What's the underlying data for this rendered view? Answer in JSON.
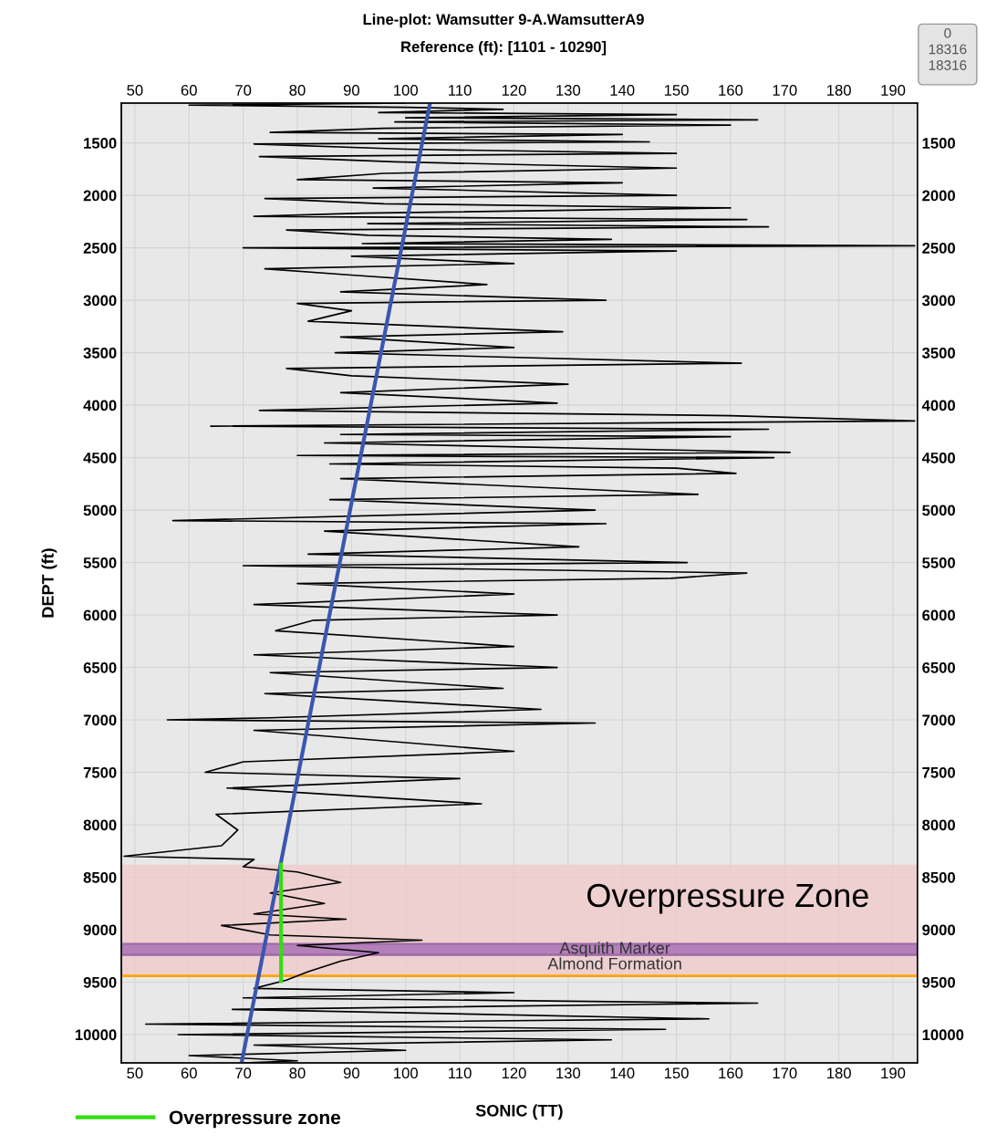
{
  "chart_data": {
    "type": "line",
    "title": "Line-plot: Wamsutter 9-A.WamsutterA9",
    "subtitle": "Reference (ft): [1101 - 10290]",
    "xlabel": "SONIC (TT)",
    "ylabel": "DEPT (ft)",
    "xlim": [
      47.5,
      194.5
    ],
    "xticks": [
      50,
      60,
      70,
      80,
      90,
      100,
      110,
      120,
      130,
      140,
      150,
      160,
      170,
      180,
      190
    ],
    "x2lim": [
      47.5,
      194.5
    ],
    "x2ticks": [
      50,
      60,
      70,
      80,
      90,
      100,
      110,
      120,
      130,
      140,
      150,
      160,
      170,
      180,
      190
    ],
    "ylim": [
      10270,
      1120
    ],
    "yticks": [
      1500,
      2000,
      2500,
      3000,
      3500,
      4000,
      4500,
      5000,
      5500,
      6000,
      6500,
      7000,
      7500,
      8000,
      8500,
      9000,
      9500,
      10000
    ],
    "y2lim": [
      10270,
      1120
    ],
    "y2ticks": [
      1500,
      2000,
      2500,
      3000,
      3500,
      4000,
      4500,
      5000,
      5500,
      6000,
      6500,
      7000,
      7500,
      8000,
      8500,
      9000,
      9500,
      10000
    ],
    "grid": true,
    "legend": "bottom left",
    "line_style": "solid",
    "marker": "none",
    "series": [
      {
        "color": "#000000",
        "x": [
          100,
          60,
          100,
          118,
          95,
          150,
          100,
          165,
          98,
          160,
          96,
          75,
          140,
          95,
          145,
          72,
          100,
          150,
          73,
          98,
          150,
          96,
          80,
          140,
          94,
          150,
          74,
          96,
          160,
          92,
          72,
          163,
          93,
          167,
          78,
          93,
          138,
          92,
          194,
          70,
          150,
          90,
          120,
          74,
          90,
          115,
          88,
          137,
          80,
          90,
          82,
          129,
          88,
          120,
          87,
          162,
          78,
          90,
          130,
          88,
          128,
          73,
          160,
          194,
          64,
          167,
          88,
          160,
          85,
          171,
          80,
          168,
          86,
          150,
          161,
          88,
          154,
          86,
          135,
          57,
          137,
          85,
          132,
          82,
          152,
          70,
          163,
          149,
          80,
          120,
          72,
          128,
          83,
          76,
          120,
          72,
          128,
          75,
          118,
          74,
          125,
          75,
          56,
          135,
          72,
          120,
          70,
          63,
          110,
          67,
          114,
          65,
          69,
          66,
          48,
          72,
          70,
          80,
          88,
          75,
          85,
          72,
          89,
          66,
          75,
          103,
          80,
          95,
          88,
          82,
          78,
          72,
          120,
          70,
          165,
          68,
          156,
          52,
          148,
          58,
          138,
          72,
          100,
          60,
          80,
          70
        ],
        "values": [
          1120,
          1140,
          1160,
          1180,
          1210,
          1230,
          1260,
          1280,
          1300,
          1330,
          1360,
          1400,
          1420,
          1460,
          1490,
          1510,
          1560,
          1600,
          1630,
          1680,
          1740,
          1790,
          1850,
          1880,
          1930,
          2000,
          2030,
          2080,
          2120,
          2170,
          2200,
          2230,
          2270,
          2300,
          2330,
          2380,
          2420,
          2460,
          2480,
          2500,
          2530,
          2580,
          2650,
          2700,
          2760,
          2850,
          2920,
          3000,
          3030,
          3100,
          3200,
          3300,
          3350,
          3450,
          3500,
          3600,
          3650,
          3720,
          3800,
          3880,
          3980,
          4050,
          4100,
          4150,
          4200,
          4230,
          4280,
          4300,
          4360,
          4450,
          4480,
          4500,
          4560,
          4600,
          4650,
          4700,
          4850,
          4900,
          5000,
          5100,
          5130,
          5200,
          5350,
          5420,
          5500,
          5530,
          5600,
          5650,
          5700,
          5800,
          5900,
          6000,
          6050,
          6150,
          6300,
          6380,
          6500,
          6550,
          6700,
          6750,
          6900,
          6980,
          7000,
          7030,
          7100,
          7300,
          7400,
          7500,
          7560,
          7650,
          7800,
          7900,
          8050,
          8200,
          8300,
          8330,
          8400,
          8450,
          8550,
          8650,
          8750,
          8850,
          8900,
          8960,
          9050,
          9100,
          9150,
          9220,
          9300,
          9400,
          9480,
          9560,
          9600,
          9650,
          9700,
          9760,
          9850,
          9900,
          9950,
          10000,
          10050,
          10100,
          10150,
          10200,
          10250,
          10270
        ]
      },
      {
        "color": "#3a56b0",
        "x": [
          104.5,
          69.7
        ],
        "values": [
          1120,
          10270
        ]
      },
      {
        "name": "Overpressure zone",
        "color": "#33dd11",
        "x": [
          77,
          77
        ],
        "values": [
          8380,
          9490
        ]
      }
    ],
    "bands": [
      {
        "axis": "y",
        "from": 8380,
        "to": 9450,
        "label": "Overpressure Zone",
        "color": "#f0c8c8"
      },
      {
        "axis": "y",
        "from": 9135,
        "to": 9240,
        "label": "Asquith Marker",
        "color": "#9b5fb0"
      }
    ],
    "ref_lines": [
      {
        "axis": "y",
        "value": 9440,
        "label": "Almond Formation",
        "color": "#ffa500",
        "line_style": "solid"
      }
    ],
    "annotations": [
      "0",
      "18316",
      "18316"
    ]
  }
}
